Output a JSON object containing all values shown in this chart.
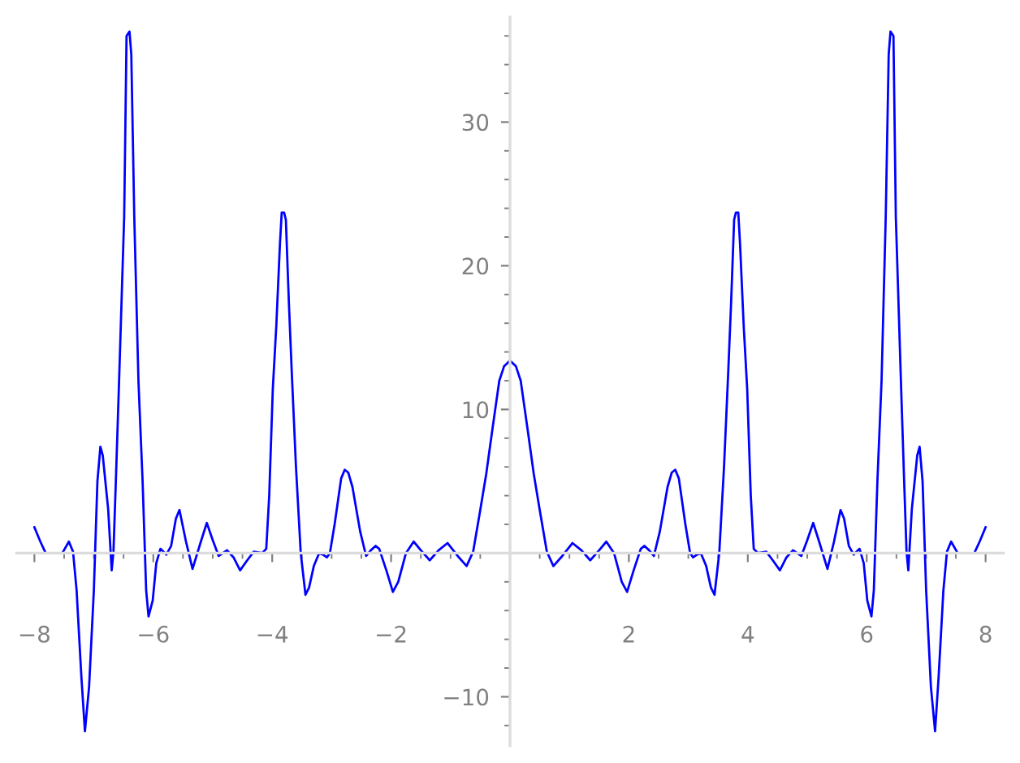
{
  "chart_data": {
    "type": "line",
    "x": [
      -8.0,
      -7.9,
      -7.81,
      -7.53,
      -7.42,
      -7.35,
      -7.29,
      -7.21,
      -7.15,
      -7.08,
      -7.0,
      -6.94,
      -6.89,
      -6.85,
      -6.76,
      -6.7,
      -6.67,
      -6.63,
      -6.58,
      -6.49,
      -6.45,
      -6.4,
      -6.37,
      -6.32,
      -6.25,
      -6.18,
      -6.12,
      -6.08,
      -6.01,
      -5.95,
      -5.88,
      -5.78,
      -5.7,
      -5.62,
      -5.56,
      -5.45,
      -5.34,
      -5.2,
      -5.1,
      -5.0,
      -4.9,
      -4.76,
      -4.65,
      -4.54,
      -4.42,
      -4.31,
      -4.17,
      -4.1,
      -4.05,
      -3.99,
      -3.93,
      -3.87,
      -3.84,
      -3.8,
      -3.77,
      -3.72,
      -3.67,
      -3.6,
      -3.52,
      -3.44,
      -3.38,
      -3.3,
      -3.21,
      -3.15,
      -3.08,
      -3.03,
      -2.95,
      -2.84,
      -2.78,
      -2.72,
      -2.65,
      -2.52,
      -2.42,
      -2.34,
      -2.26,
      -2.2,
      -2.08,
      -1.97,
      -1.88,
      -1.75,
      -1.62,
      -1.5,
      -1.35,
      -1.2,
      -1.05,
      -0.88,
      -0.73,
      -0.62,
      -0.5,
      -0.4,
      -0.3,
      -0.18,
      -0.1,
      0,
      0.1,
      0.18,
      0.3,
      0.4,
      0.5,
      0.62,
      0.73,
      0.88,
      1.05,
      1.2,
      1.35,
      1.5,
      1.62,
      1.75,
      1.88,
      1.97,
      2.08,
      2.2,
      2.26,
      2.34,
      2.42,
      2.52,
      2.65,
      2.72,
      2.78,
      2.84,
      2.95,
      3.03,
      3.08,
      3.15,
      3.21,
      3.3,
      3.38,
      3.44,
      3.52,
      3.6,
      3.67,
      3.72,
      3.77,
      3.8,
      3.84,
      3.87,
      3.93,
      3.99,
      4.05,
      4.1,
      4.17,
      4.31,
      4.42,
      4.54,
      4.65,
      4.76,
      4.9,
      5.0,
      5.1,
      5.2,
      5.34,
      5.45,
      5.56,
      5.62,
      5.7,
      5.78,
      5.88,
      5.95,
      6.01,
      6.08,
      6.12,
      6.18,
      6.25,
      6.32,
      6.37,
      6.4,
      6.45,
      6.49,
      6.58,
      6.63,
      6.67,
      6.7,
      6.76,
      6.85,
      6.89,
      6.94,
      7.0,
      7.08,
      7.15,
      7.21,
      7.29,
      7.35,
      7.42,
      7.53,
      7.81,
      7.9,
      8.0
    ],
    "series": [
      {
        "color": "#0000ff",
        "values": [
          1.8,
          0.8,
          0.0,
          0.0,
          0.8,
          0.1,
          -2.6,
          -8.6,
          -12.4,
          -9.3,
          -2.6,
          5.0,
          7.4,
          6.8,
          3.1,
          -1.2,
          0.1,
          5.0,
          11.4,
          23.4,
          36.0,
          36.3,
          34.7,
          23.4,
          12.0,
          5.0,
          -2.6,
          -4.4,
          -3.3,
          -0.7,
          0.3,
          -0.1,
          0.5,
          2.4,
          3.0,
          0.8,
          -1.1,
          0.8,
          2.1,
          0.9,
          -0.2,
          0.2,
          -0.3,
          -1.2,
          -0.5,
          0.1,
          0.0,
          0.3,
          4.0,
          11.4,
          15.9,
          21.5,
          23.7,
          23.7,
          23.2,
          17.5,
          12.5,
          6.0,
          0.0,
          -2.9,
          -2.4,
          -0.9,
          0.0,
          -0.1,
          -0.3,
          0.0,
          2.0,
          5.2,
          5.8,
          5.6,
          4.6,
          1.5,
          -0.2,
          0.2,
          0.5,
          0.3,
          -1.2,
          -2.7,
          -2.0,
          0.0,
          0.8,
          0.2,
          -0.5,
          0.2,
          0.7,
          -0.2,
          -0.9,
          0.1,
          3.0,
          5.5,
          8.5,
          12.0,
          13.0,
          13.4,
          13.0,
          12.0,
          8.5,
          5.5,
          3.0,
          0.1,
          -0.9,
          -0.2,
          0.7,
          0.2,
          -0.5,
          0.2,
          0.8,
          0.0,
          -2.0,
          -2.7,
          -1.2,
          0.3,
          0.5,
          0.2,
          -0.2,
          1.5,
          4.6,
          5.6,
          5.8,
          5.2,
          2.0,
          0.0,
          -0.3,
          -0.1,
          0.0,
          -0.9,
          -2.4,
          -2.9,
          0.0,
          6.0,
          12.5,
          17.5,
          23.2,
          23.7,
          23.7,
          21.5,
          15.9,
          11.4,
          4.0,
          0.3,
          0.0,
          0.1,
          -0.5,
          -1.2,
          -0.3,
          0.2,
          -0.2,
          0.9,
          2.1,
          0.8,
          -1.1,
          0.8,
          3.0,
          2.4,
          0.5,
          -0.1,
          0.3,
          -0.7,
          -3.3,
          -4.4,
          -2.6,
          5.0,
          12.0,
          23.4,
          34.7,
          36.3,
          36.0,
          23.4,
          11.4,
          5.0,
          0.1,
          -1.2,
          3.1,
          6.8,
          7.4,
          5.0,
          -2.6,
          -9.3,
          -12.4,
          -8.6,
          -2.6,
          0.1,
          0.8,
          0.0,
          0.0,
          0.8,
          1.8
        ]
      }
    ],
    "xlim": [
      -8.3,
      8.3
    ],
    "ylim": [
      -13.4,
      37.3
    ],
    "xticks": [
      {
        "value": -8,
        "label": "−8"
      },
      {
        "value": -7.5,
        "label": null
      },
      {
        "value": -7,
        "label": null
      },
      {
        "value": -6.5,
        "label": null
      },
      {
        "value": -6,
        "label": "−6"
      },
      {
        "value": -5.5,
        "label": null
      },
      {
        "value": -5,
        "label": null
      },
      {
        "value": -4.5,
        "label": null
      },
      {
        "value": -4,
        "label": "−4"
      },
      {
        "value": -3.5,
        "label": null
      },
      {
        "value": -3,
        "label": null
      },
      {
        "value": -2.5,
        "label": null
      },
      {
        "value": -2,
        "label": "−2"
      },
      {
        "value": -1.5,
        "label": null
      },
      {
        "value": -1,
        "label": null
      },
      {
        "value": -0.5,
        "label": null
      },
      {
        "value": 0,
        "label": null
      },
      {
        "value": 0.5,
        "label": null
      },
      {
        "value": 1,
        "label": null
      },
      {
        "value": 1.5,
        "label": null
      },
      2,
      {
        "value": 2.5,
        "label": null
      },
      {
        "value": 3,
        "label": null
      },
      {
        "value": 3.5,
        "label": null
      },
      4,
      {
        "value": 4.5,
        "label": null
      },
      {
        "value": 5,
        "label": null
      },
      {
        "value": 5.5,
        "label": null
      },
      6,
      {
        "value": 6.5,
        "label": null
      },
      {
        "value": 7,
        "label": null
      },
      {
        "value": 7.5,
        "label": null
      },
      8
    ],
    "yticks": [
      {
        "value": -12,
        "label": null
      },
      {
        "value": -10,
        "label": "−10"
      },
      {
        "value": -8,
        "label": null
      },
      {
        "value": -6,
        "label": null
      },
      {
        "value": -4,
        "label": null
      },
      {
        "value": -2,
        "label": null
      },
      {
        "value": 0,
        "label": null
      },
      {
        "value": 2,
        "label": null
      },
      {
        "value": 4,
        "label": null
      },
      {
        "value": 6,
        "label": null
      },
      {
        "value": 8,
        "label": null
      },
      10,
      {
        "value": 12,
        "label": null
      },
      {
        "value": 14,
        "label": null
      },
      {
        "value": 16,
        "label": null
      },
      {
        "value": 18,
        "label": null
      },
      20,
      {
        "value": 22,
        "label": null
      },
      {
        "value": 24,
        "label": null
      },
      {
        "value": 26,
        "label": null
      },
      {
        "value": 28,
        "label": null
      },
      30,
      {
        "value": 32,
        "label": null
      },
      {
        "value": 34,
        "label": null
      },
      {
        "value": 36,
        "label": null
      }
    ],
    "marker": "none",
    "line_style": "solid"
  }
}
